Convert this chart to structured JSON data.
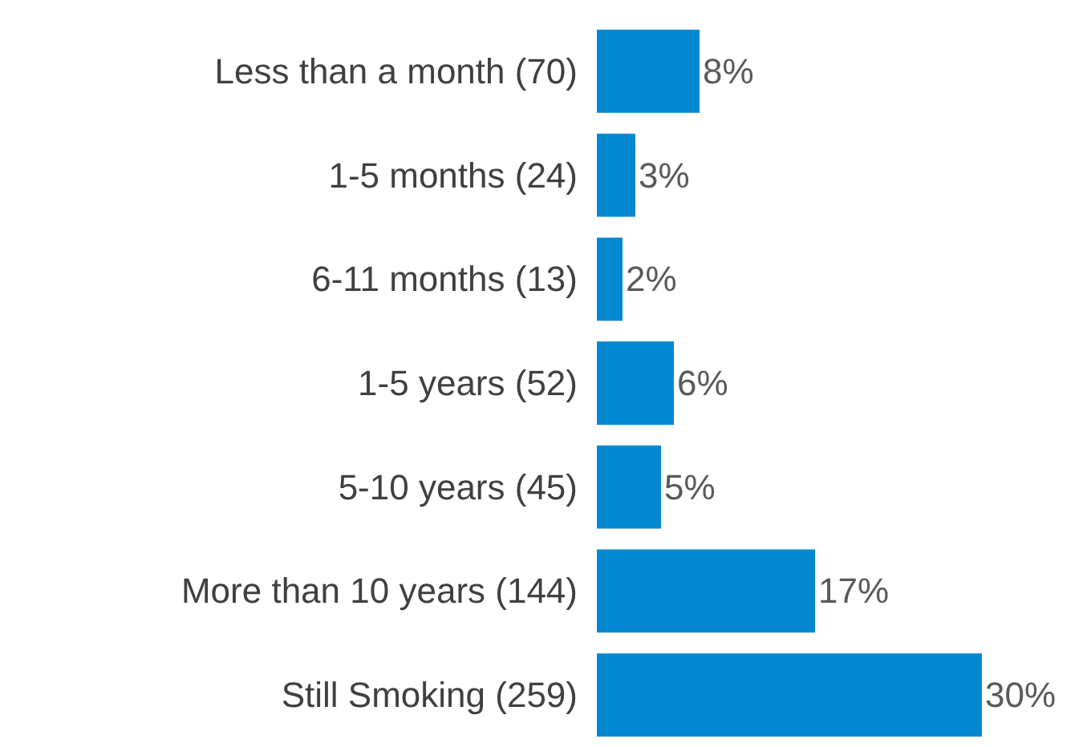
{
  "chart_data": {
    "type": "bar",
    "orientation": "horizontal",
    "categories": [
      "Less than a month (70)",
      "1-5 months (24)",
      "6-11 months (13)",
      "1-5 years (52)",
      "5-10 years (45)",
      "More than 10 years (144)",
      "Still Smoking (259)"
    ],
    "values": [
      8,
      3,
      2,
      6,
      5,
      17,
      30
    ],
    "value_labels": [
      "8%",
      "3%",
      "2%",
      "6%",
      "5%",
      "17%",
      "30%"
    ],
    "color": "#0288d1"
  }
}
